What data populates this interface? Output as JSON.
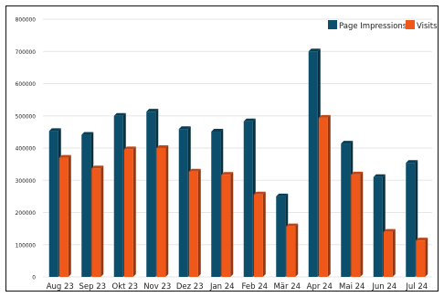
{
  "chart_data": {
    "type": "bar",
    "categories": [
      "Aug 23",
      "Sep 23",
      "Okt 23",
      "Nov 23",
      "Dez 23",
      "Jan 24",
      "Feb 24",
      "Mär 24",
      "Apr 24",
      "Mai 24",
      "Jun 24",
      "Jul 24"
    ],
    "series": [
      {
        "name": "Page Impressions",
        "color": "#0b4f6c",
        "values": [
          453000,
          441000,
          500000,
          513000,
          459000,
          451000,
          483000,
          250000,
          700000,
          414000,
          310000,
          354000
        ]
      },
      {
        "name": "Visits",
        "color": "#f0581a",
        "values": [
          370000,
          337000,
          396000,
          400000,
          327000,
          317000,
          256000,
          157000,
          494000,
          318000,
          140000,
          113000
        ]
      }
    ],
    "y_ticks": [
      "0",
      "100000",
      "200000",
      "300000",
      "400000",
      "500000",
      "600000",
      "700000",
      "800000"
    ],
    "ylim": [
      0,
      800000
    ],
    "grid": true,
    "legend_position": "top-right",
    "title": "",
    "xlabel": "",
    "ylabel": ""
  }
}
